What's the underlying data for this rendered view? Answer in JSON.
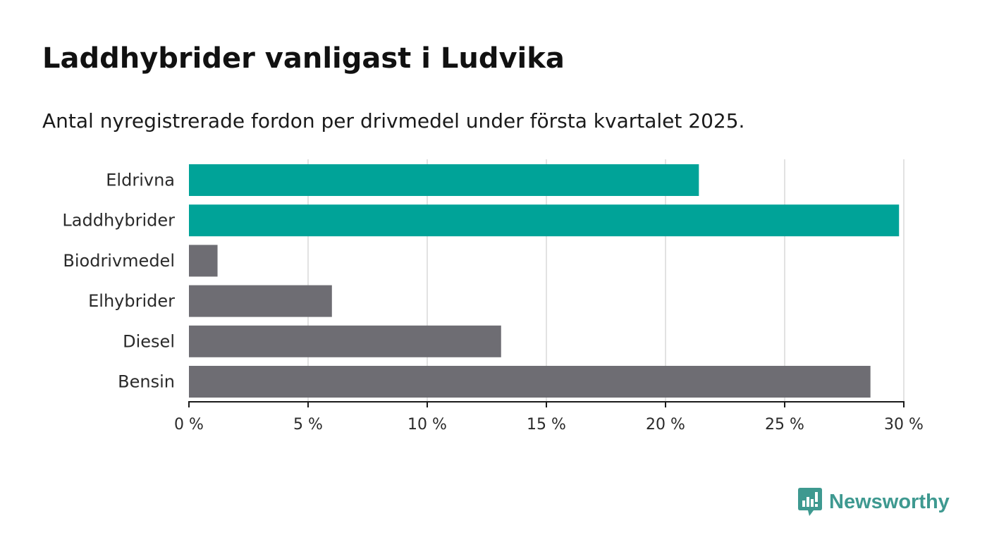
{
  "title": "Laddhybrider vanligast i Ludvika",
  "subtitle": "Antal nyregistrerade fordon per drivmedel under första kvartalet 2025.",
  "brand": {
    "name": "Newsworthy",
    "color": "#3e9990",
    "icon": "newsworthy-logo-icon"
  },
  "chart_data": {
    "type": "bar",
    "orientation": "horizontal",
    "categories": [
      "Eldrivna",
      "Laddhybrider",
      "Biodrivmedel",
      "Elhybrider",
      "Diesel",
      "Bensin"
    ],
    "values": [
      21.4,
      29.8,
      1.2,
      6.0,
      13.1,
      28.6
    ],
    "colors": [
      "#00a398",
      "#00a398",
      "#6e6d73",
      "#6e6d73",
      "#6e6d73",
      "#6e6d73"
    ],
    "xlim": [
      0,
      30
    ],
    "xticks": [
      0,
      5,
      10,
      15,
      20,
      25,
      30
    ],
    "xtick_labels": [
      "0 %",
      "5 %",
      "10 %",
      "15 %",
      "20 %",
      "25 %",
      "30 %"
    ],
    "xlabel": "",
    "ylabel": "",
    "grid": true,
    "grid_color": "#d9d9d9",
    "axis_color": "#1a1a1a"
  }
}
